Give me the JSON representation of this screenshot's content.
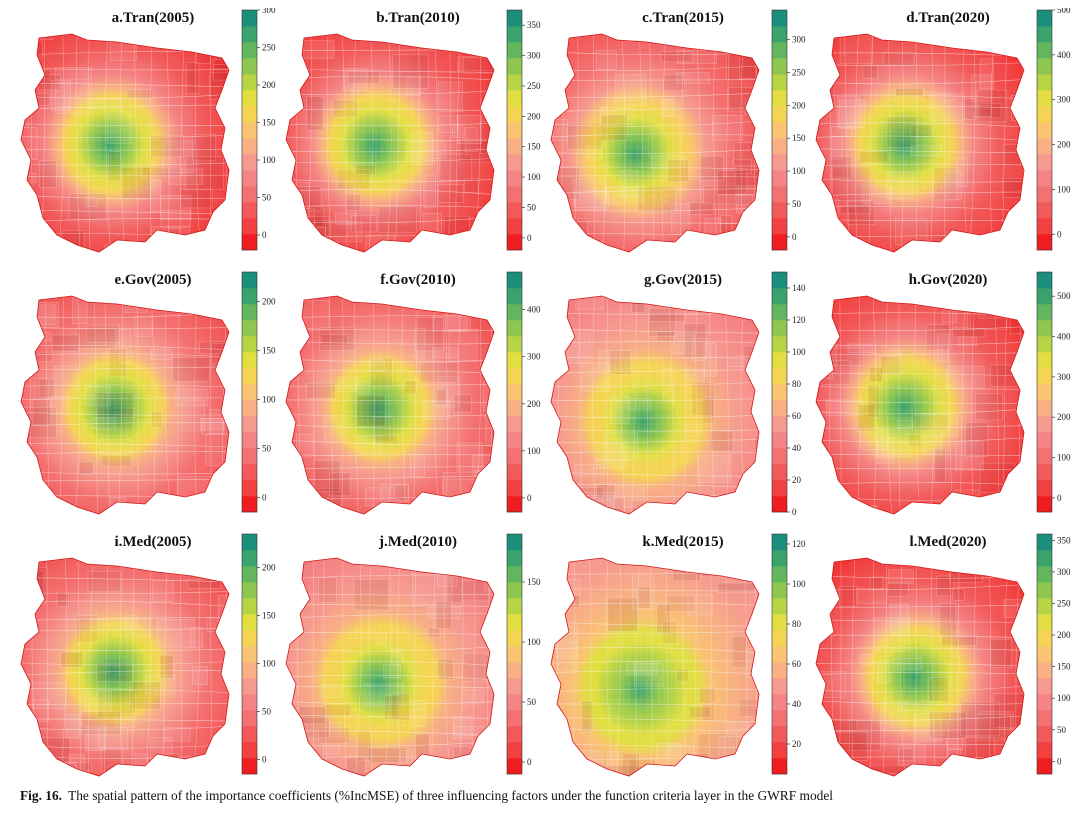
{
  "figure": {
    "panels": [
      {
        "title": "a.Tran(2005)",
        "ticks": [
          0,
          50,
          100,
          150,
          200,
          250,
          300
        ],
        "vmin": -20,
        "vmax": 300,
        "pattern": "center"
      },
      {
        "title": "b.Tran(2010)",
        "ticks": [
          0,
          50,
          100,
          150,
          200,
          250,
          300,
          350
        ],
        "vmin": -20,
        "vmax": 375,
        "pattern": "center"
      },
      {
        "title": "c.Tran(2015)",
        "ticks": [
          0,
          50,
          100,
          150,
          200,
          250,
          300
        ],
        "vmin": -20,
        "vmax": 345,
        "pattern": "centerPink"
      },
      {
        "title": "d.Tran(2020)",
        "ticks": [
          0,
          100,
          200,
          300,
          400,
          500
        ],
        "vmin": -35,
        "vmax": 500,
        "pattern": "center"
      },
      {
        "title": "e.Gov(2005)",
        "ticks": [
          0,
          50,
          100,
          150,
          200
        ],
        "vmin": -15,
        "vmax": 230,
        "pattern": "centerWest"
      },
      {
        "title": "f.Gov(2010)",
        "ticks": [
          0,
          100,
          200,
          300,
          400
        ],
        "vmin": -30,
        "vmax": 480,
        "pattern": "centerWest"
      },
      {
        "title": "g.Gov(2015)",
        "ticks": [
          0,
          20,
          40,
          60,
          80,
          100,
          120,
          140
        ],
        "vmin": 0,
        "vmax": 150,
        "pattern": "broad"
      },
      {
        "title": "h.Gov(2020)",
        "ticks": [
          0,
          100,
          200,
          300,
          400,
          500
        ],
        "vmin": -35,
        "vmax": 560,
        "pattern": "center"
      },
      {
        "title": "i.Med(2005)",
        "ticks": [
          0,
          50,
          100,
          150,
          200
        ],
        "vmin": -15,
        "vmax": 235,
        "pattern": "centerWest"
      },
      {
        "title": "j.Med(2010)",
        "ticks": [
          0,
          50,
          100,
          150
        ],
        "vmin": -10,
        "vmax": 190,
        "pattern": "broad"
      },
      {
        "title": "k.Med(2015)",
        "ticks": [
          20,
          40,
          60,
          80,
          100,
          120
        ],
        "vmin": 5,
        "vmax": 125,
        "pattern": "broadest"
      },
      {
        "title": "l.Med(2020)",
        "ticks": [
          0,
          50,
          100,
          150,
          200,
          250,
          300,
          350
        ],
        "vmin": -20,
        "vmax": 360,
        "pattern": "centerSmall"
      }
    ],
    "colors": [
      "#ef1c22",
      "#f24141",
      "#f25a5a",
      "#f47171",
      "#f58585",
      "#f69a8f",
      "#f8b084",
      "#f9c472",
      "#f5d454",
      "#e1de42",
      "#b7d445",
      "#8ec74f",
      "#63b65d",
      "#3aa26c",
      "#1b8f7c"
    ],
    "caption_label": "Fig. 16.",
    "caption_text": "The spatial pattern of the importance coefficients (%IncMSE) of three influencing factors under the function criteria layer in the GWRF model"
  }
}
